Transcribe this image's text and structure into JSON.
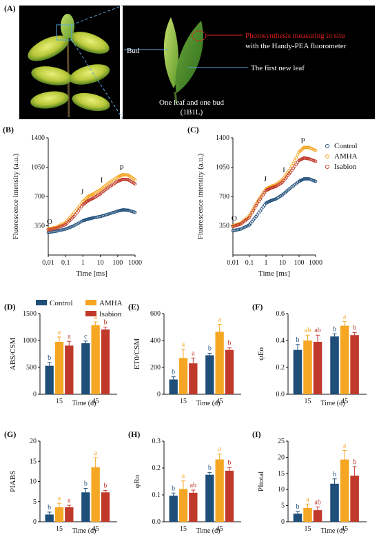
{
  "panel_labels": [
    "(A)",
    "(B)",
    "(C)",
    "(D)",
    "(E)",
    "(F)",
    "(G)",
    "(H)",
    "(I)"
  ],
  "photo": {
    "bud_label": "Bud",
    "measure_label": "Photosynthesis measuring in situ",
    "instrument_label": "with the Handy-PEA fluorometer",
    "leaf_label": "The first new leaf",
    "caption_line1": "One leaf and one bud",
    "caption_line2": "(1B1L)"
  },
  "colors": {
    "control": "#1f4e79",
    "amha": "#f5a623",
    "isabion": "#c0392b",
    "label_red": "#e02020"
  },
  "legend": {
    "control": "Control",
    "amha": "AMHA",
    "isabion": "Isabion"
  },
  "chart_data": [
    {
      "id": "B",
      "type": "scatter",
      "xscale": "log",
      "xlim": [
        0.01,
        1000
      ],
      "ylim": [
        0,
        1400
      ],
      "xlabel": "Time [ms]",
      "ylabel": "Fluorescence intensity (a.u.)",
      "xticks": [
        "0.01",
        "0.1",
        "1",
        "10",
        "100",
        "1000"
      ],
      "yticks": [
        "350",
        "700",
        "1050",
        "1400"
      ],
      "annotations": [
        "O",
        "J",
        "I",
        "P"
      ],
      "series": [
        {
          "name": "Control",
          "x": [
            0.01,
            0.03,
            0.1,
            0.3,
            1,
            2,
            4,
            10,
            30,
            100,
            200,
            400,
            1000
          ],
          "y": [
            270,
            285,
            310,
            350,
            410,
            430,
            445,
            460,
            490,
            525,
            540,
            535,
            510
          ]
        },
        {
          "name": "AMHA",
          "x": [
            0.01,
            0.03,
            0.1,
            0.3,
            1,
            2,
            4,
            10,
            30,
            100,
            200,
            400,
            1000
          ],
          "y": [
            310,
            335,
            390,
            500,
            640,
            700,
            730,
            780,
            860,
            930,
            960,
            955,
            900
          ]
        },
        {
          "name": "Isabion",
          "x": [
            0.01,
            0.03,
            0.1,
            0.3,
            1,
            2,
            4,
            10,
            30,
            100,
            200,
            400,
            1000
          ],
          "y": [
            300,
            320,
            365,
            460,
            600,
            650,
            680,
            730,
            810,
            880,
            905,
            900,
            850
          ]
        }
      ]
    },
    {
      "id": "C",
      "type": "scatter",
      "xscale": "log",
      "xlim": [
        0.01,
        1000
      ],
      "ylim": [
        0,
        1400
      ],
      "xlabel": "Time [ms]",
      "ylabel": "Fluorescence intensity (a.u.)",
      "xticks": [
        "0.01",
        "0.1",
        "1",
        "10",
        "100",
        "1000"
      ],
      "yticks": [
        "350",
        "700",
        "1050",
        "1400"
      ],
      "annotations": [
        "O",
        "J",
        "I",
        "P"
      ],
      "series": [
        {
          "name": "Control",
          "x": [
            0.01,
            0.03,
            0.1,
            0.3,
            1,
            2,
            4,
            10,
            30,
            100,
            200,
            400,
            1000
          ],
          "y": [
            290,
            310,
            360,
            480,
            620,
            650,
            670,
            720,
            800,
            880,
            910,
            910,
            880
          ]
        },
        {
          "name": "AMHA",
          "x": [
            0.01,
            0.03,
            0.1,
            0.3,
            1,
            2,
            4,
            10,
            30,
            100,
            200,
            400,
            1000
          ],
          "y": [
            350,
            380,
            470,
            640,
            790,
            820,
            840,
            900,
            1030,
            1230,
            1285,
            1285,
            1250
          ]
        },
        {
          "name": "Isabion",
          "x": [
            0.01,
            0.03,
            0.1,
            0.3,
            1,
            2,
            4,
            10,
            30,
            100,
            200,
            400,
            1000
          ],
          "y": [
            340,
            370,
            450,
            620,
            770,
            800,
            820,
            870,
            990,
            1130,
            1160,
            1150,
            1120
          ]
        }
      ]
    },
    {
      "id": "D",
      "type": "bar",
      "ylabel": "ABS/CSM",
      "xlabel": "Time (d)",
      "categories": [
        "15",
        "45"
      ],
      "ylim": [
        0,
        1500
      ],
      "yticks": [
        "0",
        "500",
        "1000",
        "1500"
      ],
      "series": [
        {
          "name": "Control",
          "values": [
            530,
            950
          ],
          "err": [
            60,
            40
          ],
          "letters": [
            "b",
            "c"
          ]
        },
        {
          "name": "AMHA",
          "values": [
            975,
            1285
          ],
          "err": [
            90,
            60
          ],
          "letters": [
            "a",
            "a"
          ]
        },
        {
          "name": "Isabion",
          "values": [
            905,
            1205
          ],
          "err": [
            80,
            45
          ],
          "letters": [
            "a",
            "b"
          ]
        }
      ]
    },
    {
      "id": "E",
      "type": "bar",
      "ylabel": "ET0/CSM",
      "xlabel": "Time (d)",
      "categories": [
        "15",
        "45"
      ],
      "ylim": [
        0,
        600
      ],
      "yticks": [
        "0",
        "200",
        "400",
        "600"
      ],
      "series": [
        {
          "name": "Control",
          "values": [
            110,
            290
          ],
          "err": [
            20,
            15
          ],
          "letters": [
            "b",
            "b"
          ]
        },
        {
          "name": "AMHA",
          "values": [
            270,
            465
          ],
          "err": [
            65,
            55
          ],
          "letters": [
            "a",
            "a"
          ]
        },
        {
          "name": "Isabion",
          "values": [
            230,
            330
          ],
          "err": [
            40,
            15
          ],
          "letters": [
            "a",
            "b"
          ]
        }
      ]
    },
    {
      "id": "F",
      "type": "bar",
      "ylabel": "ψEo",
      "xlabel": "Time (d)",
      "categories": [
        "15",
        "45"
      ],
      "ylim": [
        0,
        0.6
      ],
      "yticks": [
        "0.0",
        "0.2",
        "0.4",
        "0.6"
      ],
      "series": [
        {
          "name": "Control",
          "values": [
            0.33,
            0.43
          ],
          "err": [
            0.04,
            0.02
          ],
          "letters": [
            "b",
            "b"
          ]
        },
        {
          "name": "AMHA",
          "values": [
            0.4,
            0.51
          ],
          "err": [
            0.04,
            0.03
          ],
          "letters": [
            "ab",
            "a"
          ]
        },
        {
          "name": "Isabion",
          "values": [
            0.39,
            0.44
          ],
          "err": [
            0.05,
            0.02
          ],
          "letters": [
            "ab",
            "b"
          ]
        }
      ]
    },
    {
      "id": "G",
      "type": "bar",
      "ylabel": "PIABS",
      "xlabel": "Time (d)",
      "categories": [
        "15",
        "45"
      ],
      "ylim": [
        0,
        20
      ],
      "yticks": [
        "0",
        "5",
        "10",
        "15",
        "20"
      ],
      "series": [
        {
          "name": "Control",
          "values": [
            1.8,
            7.3
          ],
          "err": [
            0.6,
            1.0
          ],
          "letters": [
            "b",
            "b"
          ]
        },
        {
          "name": "AMHA",
          "values": [
            3.6,
            13.5
          ],
          "err": [
            1.0,
            2.4
          ],
          "letters": [
            "a",
            "a"
          ]
        },
        {
          "name": "Isabion",
          "values": [
            3.6,
            7.3
          ],
          "err": [
            0.5,
            0.5
          ],
          "letters": [
            "a",
            "b"
          ]
        }
      ]
    },
    {
      "id": "H",
      "type": "bar",
      "ylabel": "φRo",
      "xlabel": "Time (d)",
      "categories": [
        "15",
        "45"
      ],
      "ylim": [
        0,
        0.3
      ],
      "yticks": [
        "0.0",
        "0.1",
        "0.2",
        "0.3"
      ],
      "series": [
        {
          "name": "Control",
          "values": [
            0.097,
            0.175
          ],
          "err": [
            0.01,
            0.008
          ],
          "letters": [
            "b",
            "b"
          ]
        },
        {
          "name": "AMHA",
          "values": [
            0.122,
            0.232
          ],
          "err": [
            0.03,
            0.02
          ],
          "letters": [
            "a",
            "a"
          ]
        },
        {
          "name": "Isabion",
          "values": [
            0.108,
            0.19
          ],
          "err": [
            0.01,
            0.012
          ],
          "letters": [
            "ab",
            "b"
          ]
        }
      ]
    },
    {
      "id": "I",
      "type": "bar",
      "ylabel": "PItotal",
      "xlabel": "Time (d)",
      "categories": [
        "15",
        "45"
      ],
      "ylim": [
        0,
        25
      ],
      "yticks": [
        "0",
        "5",
        "10",
        "15",
        "20",
        "25"
      ],
      "series": [
        {
          "name": "Control",
          "values": [
            2.5,
            11.8
          ],
          "err": [
            0.7,
            1.5
          ],
          "letters": [
            "b",
            "b"
          ]
        },
        {
          "name": "AMHA",
          "values": [
            4.3,
            19.3
          ],
          "err": [
            1.2,
            2.8
          ],
          "letters": [
            "a",
            "a"
          ]
        },
        {
          "name": "Isabion",
          "values": [
            3.6,
            14.3
          ],
          "err": [
            1.0,
            2.8
          ],
          "letters": [
            "ab",
            "b"
          ]
        }
      ]
    }
  ]
}
